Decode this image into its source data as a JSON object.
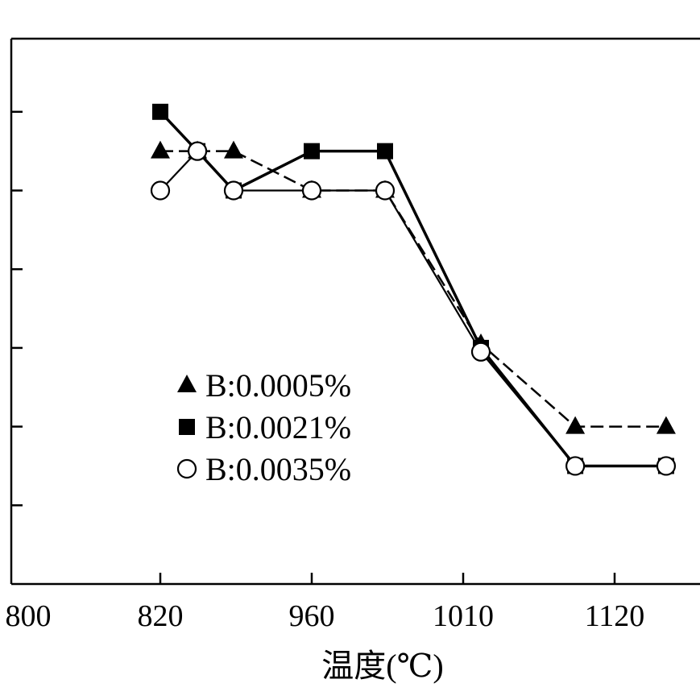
{
  "chart_data": {
    "type": "line",
    "title": "",
    "xlabel": "温度(℃)",
    "ylabel": "",
    "x_tick_labels": [
      "800",
      "820",
      "960",
      "1010",
      "1120"
    ],
    "x_tick_positions": [
      -1,
      0,
      1,
      2,
      3
    ],
    "x_note": "x values are positions on the evenly spaced category axis (0 = 820, 1 = 960, 2 = 1010, 3 = 1120)",
    "y_ticks": [
      1,
      2,
      3,
      4,
      5,
      6
    ],
    "y_note": "y-axis tick labels are not shown; values are in tick-spacing units",
    "xlim": [
      -1.08,
      3.55
    ],
    "ylim": [
      0,
      7
    ],
    "grid": false,
    "legend_position": "center-left",
    "series": [
      {
        "name": "B:0.0005%",
        "marker": "triangle",
        "color": "#000000",
        "x": [
          0,
          0.245,
          0.484,
          1,
          1.484,
          2.117,
          2.74,
          3.34
        ],
        "y": [
          5.5,
          5.5,
          5.5,
          5.0,
          5.0,
          3.05,
          2.0,
          2.0
        ]
      },
      {
        "name": "B:0.0021%",
        "marker": "square",
        "color": "#000000",
        "x": [
          0,
          0.245,
          0.484,
          1,
          1.484,
          2.117,
          2.74,
          3.34
        ],
        "y": [
          6.0,
          5.5,
          5.0,
          5.5,
          5.5,
          3.0,
          1.5,
          1.5
        ]
      },
      {
        "name": "B:0.0035%",
        "marker": "circle",
        "color": "#000000",
        "x": [
          0,
          0.245,
          0.484,
          1,
          1.484,
          2.117,
          2.74,
          3.34
        ],
        "y": [
          5.0,
          5.5,
          5.0,
          5.0,
          5.0,
          2.95,
          1.5,
          1.5
        ]
      }
    ]
  }
}
